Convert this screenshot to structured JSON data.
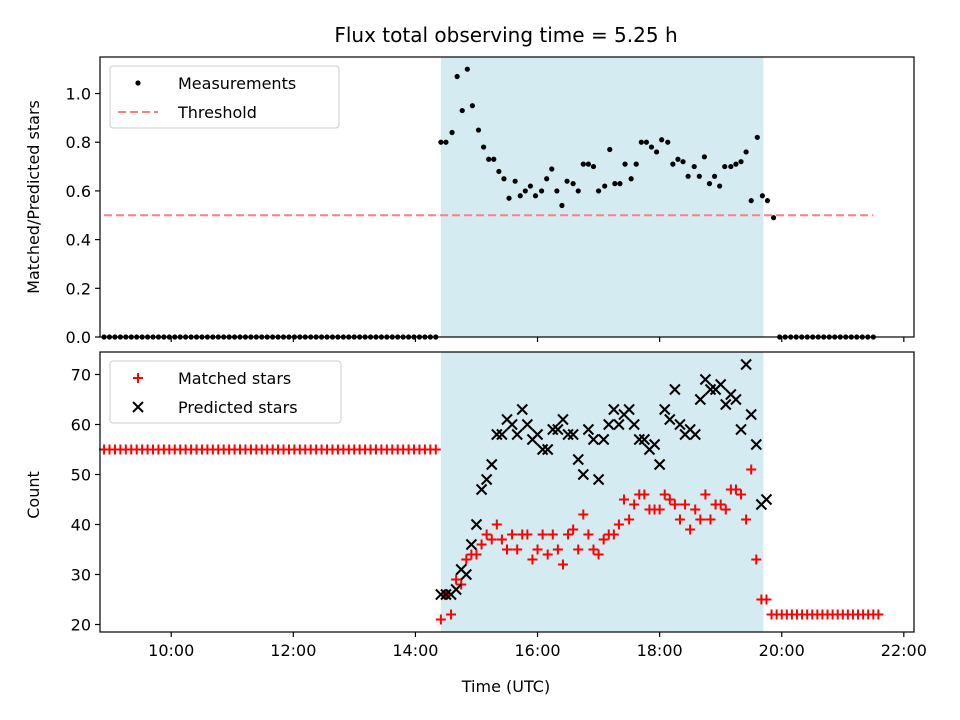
{
  "chart_data": [
    {
      "type": "scatter",
      "title": "Flux total observing time = 5.25 h",
      "xlabel": "",
      "ylabel": "Matched/Predicted stars",
      "ylim": [
        0,
        1.15
      ],
      "yticks": [
        "0.0",
        "0.2",
        "0.4",
        "0.6",
        "0.8",
        "1.0"
      ],
      "xlim": [
        "08:50",
        "22:10"
      ],
      "highlight_span": [
        "14:25",
        "19:42"
      ],
      "highlight_color": "#d4ebf2",
      "legend": "top-left",
      "series": [
        {
          "name": "Measurements",
          "marker": "dot",
          "color": "#000000",
          "points": [
            [
              "14:25",
              0.8
            ],
            [
              "14:30",
              0.8
            ],
            [
              "14:36",
              0.84
            ],
            [
              "14:41",
              1.07
            ],
            [
              "14:46",
              0.93
            ],
            [
              "14:51",
              1.1
            ],
            [
              "14:56",
              0.95
            ],
            [
              "15:02",
              0.85
            ],
            [
              "15:07",
              0.78
            ],
            [
              "15:12",
              0.73
            ],
            [
              "15:17",
              0.73
            ],
            [
              "15:22",
              0.68
            ],
            [
              "15:27",
              0.65
            ],
            [
              "15:32",
              0.57
            ],
            [
              "15:38",
              0.64
            ],
            [
              "15:43",
              0.58
            ],
            [
              "15:48",
              0.6
            ],
            [
              "15:53",
              0.62
            ],
            [
              "15:58",
              0.58
            ],
            [
              "16:04",
              0.6
            ],
            [
              "16:09",
              0.65
            ],
            [
              "16:14",
              0.69
            ],
            [
              "16:19",
              0.6
            ],
            [
              "16:24",
              0.54
            ],
            [
              "16:29",
              0.64
            ],
            [
              "16:35",
              0.63
            ],
            [
              "16:40",
              0.6
            ],
            [
              "16:45",
              0.71
            ],
            [
              "16:50",
              0.71
            ],
            [
              "16:55",
              0.7
            ],
            [
              "17:00",
              0.6
            ],
            [
              "17:06",
              0.62
            ],
            [
              "17:11",
              0.77
            ],
            [
              "17:16",
              0.63
            ],
            [
              "17:21",
              0.63
            ],
            [
              "17:26",
              0.71
            ],
            [
              "17:32",
              0.65
            ],
            [
              "17:37",
              0.71
            ],
            [
              "17:42",
              0.8
            ],
            [
              "17:47",
              0.8
            ],
            [
              "17:52",
              0.78
            ],
            [
              "17:57",
              0.76
            ],
            [
              "18:02",
              0.81
            ],
            [
              "18:08",
              0.8
            ],
            [
              "18:13",
              0.71
            ],
            [
              "18:18",
              0.73
            ],
            [
              "18:23",
              0.72
            ],
            [
              "18:28",
              0.66
            ],
            [
              "18:34",
              0.7
            ],
            [
              "18:39",
              0.66
            ],
            [
              "18:44",
              0.74
            ],
            [
              "18:49",
              0.63
            ],
            [
              "18:54",
              0.66
            ],
            [
              "18:59",
              0.62
            ],
            [
              "19:04",
              0.7
            ],
            [
              "19:10",
              0.7
            ],
            [
              "19:15",
              0.71
            ],
            [
              "19:20",
              0.72
            ],
            [
              "19:25",
              0.76
            ],
            [
              "19:30",
              0.56
            ],
            [
              "19:36",
              0.82
            ],
            [
              "19:41",
              0.58
            ],
            [
              "19:46",
              0.56
            ],
            [
              "19:52",
              0.49
            ]
          ],
          "zero_runs": [
            [
              "08:54",
              "14:20",
              62
            ],
            [
              "19:58",
              "21:30",
              18
            ]
          ]
        },
        {
          "name": "Threshold",
          "style": "dashed",
          "color": "#ff7f7f",
          "points": [
            [
              "08:54",
              0.5
            ],
            [
              "21:30",
              0.5
            ]
          ]
        }
      ]
    },
    {
      "type": "scatter",
      "title": "",
      "xlabel": "Time (UTC)",
      "ylabel": "Count",
      "ylim": [
        18.5,
        74.5
      ],
      "yticks": [
        "20",
        "30",
        "40",
        "50",
        "60",
        "70"
      ],
      "xlim": [
        "08:50",
        "22:10"
      ],
      "xticks": [
        "10:00",
        "12:00",
        "14:00",
        "16:00",
        "18:00",
        "20:00",
        "22:00"
      ],
      "highlight_span": [
        "14:25",
        "19:42"
      ],
      "highlight_color": "#d4ebf2",
      "legend": "top-left",
      "series": [
        {
          "name": "Matched stars",
          "marker": "plus",
          "color": "#ff0000",
          "points": [
            [
              "14:25",
              21
            ],
            [
              "14:30",
              26
            ],
            [
              "14:35",
              22
            ],
            [
              "14:40",
              29
            ],
            [
              "14:45",
              28
            ],
            [
              "14:50",
              33
            ],
            [
              "14:55",
              34
            ],
            [
              "15:00",
              34
            ],
            [
              "15:05",
              36
            ],
            [
              "15:10",
              38
            ],
            [
              "15:15",
              37
            ],
            [
              "15:20",
              40
            ],
            [
              "15:25",
              37
            ],
            [
              "15:30",
              35
            ],
            [
              "15:35",
              38
            ],
            [
              "15:40",
              35
            ],
            [
              "15:45",
              38
            ],
            [
              "15:50",
              38
            ],
            [
              "15:55",
              33
            ],
            [
              "16:00",
              35
            ],
            [
              "16:05",
              38
            ],
            [
              "16:10",
              34
            ],
            [
              "16:15",
              38
            ],
            [
              "16:20",
              35
            ],
            [
              "16:25",
              32
            ],
            [
              "16:30",
              38
            ],
            [
              "16:35",
              39
            ],
            [
              "16:40",
              35
            ],
            [
              "16:45",
              42
            ],
            [
              "16:50",
              38
            ],
            [
              "16:55",
              35
            ],
            [
              "17:00",
              34
            ],
            [
              "17:05",
              37
            ],
            [
              "17:10",
              38
            ],
            [
              "17:15",
              38
            ],
            [
              "17:20",
              40
            ],
            [
              "17:25",
              45
            ],
            [
              "17:30",
              41
            ],
            [
              "17:35",
              44
            ],
            [
              "17:40",
              46
            ],
            [
              "17:45",
              46
            ],
            [
              "17:50",
              43
            ],
            [
              "17:55",
              43
            ],
            [
              "18:00",
              43
            ],
            [
              "18:05",
              46
            ],
            [
              "18:10",
              45
            ],
            [
              "18:15",
              44
            ],
            [
              "18:20",
              41
            ],
            [
              "18:25",
              44
            ],
            [
              "18:30",
              39
            ],
            [
              "18:35",
              43
            ],
            [
              "18:40",
              41
            ],
            [
              "18:45",
              46
            ],
            [
              "18:50",
              41
            ],
            [
              "18:55",
              44
            ],
            [
              "19:00",
              44
            ],
            [
              "19:05",
              43
            ],
            [
              "19:10",
              47
            ],
            [
              "19:15",
              47
            ],
            [
              "19:20",
              46
            ],
            [
              "19:25",
              41
            ],
            [
              "19:30",
              51
            ],
            [
              "19:35",
              33
            ],
            [
              "19:40",
              25
            ],
            [
              "19:45",
              25
            ]
          ],
          "const_runs": [
            [
              "08:54",
              "14:20",
              55,
              62
            ],
            [
              "19:50",
              "21:35",
              22,
              22
            ]
          ]
        },
        {
          "name": "Predicted stars",
          "marker": "x",
          "color": "#000000",
          "points": [
            [
              "14:25",
              26
            ],
            [
              "14:30",
              26
            ],
            [
              "14:35",
              26
            ],
            [
              "14:40",
              27
            ],
            [
              "14:45",
              31
            ],
            [
              "14:50",
              30
            ],
            [
              "14:55",
              36
            ],
            [
              "15:00",
              40
            ],
            [
              "15:05",
              47
            ],
            [
              "15:10",
              49
            ],
            [
              "15:15",
              52
            ],
            [
              "15:20",
              58
            ],
            [
              "15:25",
              58
            ],
            [
              "15:30",
              61
            ],
            [
              "15:35",
              60
            ],
            [
              "15:40",
              58
            ],
            [
              "15:45",
              63
            ],
            [
              "15:50",
              60
            ],
            [
              "15:55",
              57
            ],
            [
              "16:00",
              58
            ],
            [
              "16:05",
              55
            ],
            [
              "16:10",
              55
            ],
            [
              "16:15",
              59
            ],
            [
              "16:20",
              59
            ],
            [
              "16:25",
              61
            ],
            [
              "16:30",
              58
            ],
            [
              "16:35",
              58
            ],
            [
              "16:40",
              53
            ],
            [
              "16:45",
              50
            ],
            [
              "16:50",
              59
            ],
            [
              "16:55",
              57
            ],
            [
              "17:00",
              49
            ],
            [
              "17:05",
              57
            ],
            [
              "17:10",
              60
            ],
            [
              "17:15",
              63
            ],
            [
              "17:20",
              60
            ],
            [
              "17:25",
              62
            ],
            [
              "17:30",
              63
            ],
            [
              "17:35",
              60
            ],
            [
              "17:40",
              57
            ],
            [
              "17:45",
              57
            ],
            [
              "17:50",
              55
            ],
            [
              "17:55",
              56
            ],
            [
              "18:00",
              52
            ],
            [
              "18:05",
              63
            ],
            [
              "18:10",
              61
            ],
            [
              "18:15",
              67
            ],
            [
              "18:20",
              60
            ],
            [
              "18:25",
              58
            ],
            [
              "18:30",
              59
            ],
            [
              "18:35",
              58
            ],
            [
              "18:40",
              65
            ],
            [
              "18:45",
              69
            ],
            [
              "18:50",
              67
            ],
            [
              "18:55",
              67
            ],
            [
              "19:00",
              68
            ],
            [
              "19:05",
              64
            ],
            [
              "19:10",
              66
            ],
            [
              "19:15",
              65
            ],
            [
              "19:20",
              59
            ],
            [
              "19:25",
              72
            ],
            [
              "19:30",
              62
            ],
            [
              "19:35",
              56
            ],
            [
              "19:40",
              44
            ],
            [
              "19:45",
              45
            ]
          ]
        }
      ]
    }
  ]
}
